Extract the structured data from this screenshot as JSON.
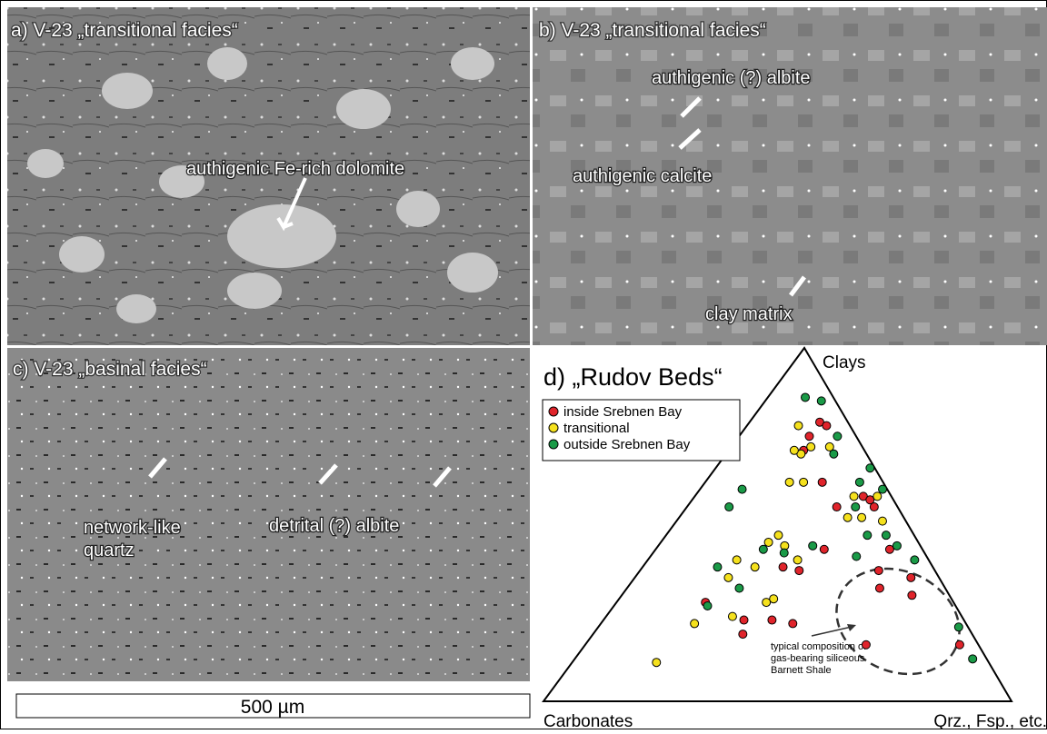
{
  "panels": [
    {
      "label": "a) V-23 „transitional facies“",
      "annotations": [
        "authigenic Fe-rich dolomite"
      ]
    },
    {
      "label": "b) V-23 „transitional facies“",
      "annotations": [
        "authigenic (?) albite",
        "authigenic calcite",
        "clay matrix"
      ]
    },
    {
      "label": "c) V-23 „basinal facies“",
      "annotations": [
        "network-like",
        "quartz",
        "detrital (?) albite"
      ]
    }
  ],
  "scale_bar": "500 µm",
  "ternary": {
    "title": "d) „Rudov Beds“",
    "apex_top": "Clays",
    "apex_left": "Carbonates",
    "apex_right": "Qrz., Fsp., etc.",
    "annotation": [
      "typical composition of",
      "gas-bearing siliceous",
      "Barnett Shale"
    ],
    "series": [
      {
        "name": "inside Srebnen Bay",
        "color": "#e0242b",
        "clays": [
          79,
          78,
          75,
          71,
          62,
          58,
          57,
          55,
          55,
          43,
          43,
          38,
          37,
          37,
          35,
          32,
          30,
          28,
          23,
          23,
          19,
          22,
          16,
          16
        ],
        "qfm": [
          15,
          17,
          15,
          16,
          25,
          36,
          38,
          40,
          32,
          50,
          36,
          30,
          34,
          51,
          59,
          54,
          62,
          19,
          30,
          36,
          32,
          41,
          60,
          80
        ]
      },
      {
        "name": "transitional",
        "color": "#f5e11d",
        "clays": [
          70,
          71,
          78,
          72,
          72,
          62,
          62,
          58,
          52,
          52,
          51,
          47,
          44,
          45,
          40,
          38,
          35,
          29,
          28,
          24,
          22,
          40,
          11,
          58
        ],
        "qfm": [
          16,
          14,
          11,
          17,
          21,
          18,
          21,
          34,
          36,
          39,
          44,
          24,
          27,
          23,
          19,
          24,
          20,
          33,
          32,
          27,
          20,
          32,
          18,
          39
        ]
      },
      {
        "name": "outside Srebnen Bay",
        "color": "#1a9a47",
        "clays": [
          86,
          85,
          75,
          66,
          55,
          47,
          44,
          47,
          41,
          40,
          42,
          60,
          55,
          43,
          38,
          32,
          27,
          44,
          21,
          12,
          62,
          70,
          60
        ],
        "qfm": [
          8,
          12,
          21,
          33,
          36,
          47,
          51,
          43,
          44,
          57,
          28,
          9,
          9,
          23,
          16,
          24,
          20,
          33,
          77,
          85,
          33,
          23,
          39
        ]
      }
    ]
  }
}
